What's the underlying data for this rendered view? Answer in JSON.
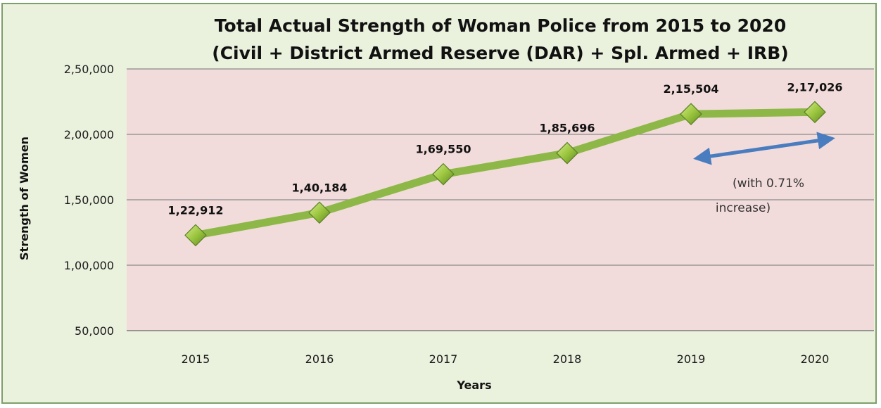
{
  "chart_data": {
    "type": "line",
    "title": [
      "Total Actual Strength of Woman Police from 2015 to 2020",
      "(Civil + District Armed Reserve (DAR) + Spl.  Armed + IRB)"
    ],
    "xlabel": "Years",
    "ylabel": "Strength of Women",
    "categories": [
      "2015",
      "2016",
      "2017",
      "2018",
      "2019",
      "2020"
    ],
    "series": [
      {
        "values": [
          122912,
          140184,
          169550,
          185696,
          215504,
          217026
        ],
        "data_labels": [
          "1,22,912",
          "1,40,184",
          "1,69,550",
          "1,85,696",
          "2,15,504",
          "2,17,026"
        ],
        "line_color": "#8db847",
        "marker": "diamond",
        "marker_color": "#9cc63f"
      }
    ],
    "ylim": [
      50000,
      250000
    ],
    "y_ticks": [
      50000,
      100000,
      150000,
      200000,
      250000
    ],
    "y_tick_labels": [
      "50,000",
      "1,00,000",
      "1,50,000",
      "2,00,000",
      "2,50,000"
    ],
    "grid": true,
    "plot_background": "#f2dcdb",
    "chart_background": "#eaf1dd",
    "annotation": {
      "text_lines": [
        "(with 0.71%",
        "increase)"
      ],
      "arrow": "double-headed",
      "arrow_color": "#4a7dbf"
    }
  }
}
